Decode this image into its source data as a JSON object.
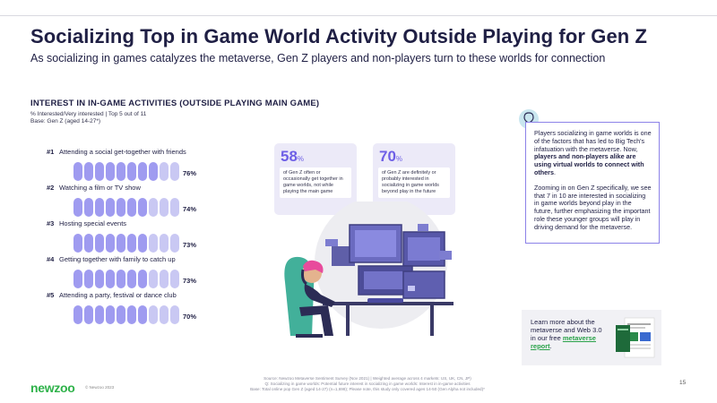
{
  "header": {
    "title": "Socializing Top in Game World Activity Outside Playing for Gen Z",
    "subtitle": "As socializing in games catalyzes the metaverse, Gen Z players and non-players turn to these worlds for connection"
  },
  "section": {
    "title": "INTEREST IN IN-GAME ACTIVITIES (OUTSIDE PLAYING MAIN GAME)",
    "subtitle_1": "% Interested/Very interested | Top 5 out of 11",
    "subtitle_2": "Base: Gen Z (aged 14-27*)"
  },
  "activities": [
    {
      "rank": "#1",
      "label": "Attending a social get-together with friends",
      "value": "76%",
      "fraction": 0.76
    },
    {
      "rank": "#2",
      "label": "Watching a film or TV show",
      "value": "74%",
      "fraction": 0.74
    },
    {
      "rank": "#3",
      "label": "Hosting special events",
      "value": "73%",
      "fraction": 0.73
    },
    {
      "rank": "#4",
      "label": "Getting together with family to catch up",
      "value": "73%",
      "fraction": 0.73
    },
    {
      "rank": "#5",
      "label": "Attending a party, festival or dance club",
      "value": "70%",
      "fraction": 0.7
    }
  ],
  "stats": [
    {
      "value": "58",
      "unit": "%",
      "text": "of Gen Z often or occasionally get together in game worlds, not while playing the main game"
    },
    {
      "value": "70",
      "unit": "%",
      "text": "of Gen Z are definitely or probably interested in socializing in game worlds beyond play in the future"
    }
  ],
  "callout": {
    "p1_a": "Players socializing in game worlds is one of the factors that has led to Big Tech's infatuation with the metaverse. Now, ",
    "p1_bold": "players and non-players alike are using virtual worlds to connect with others",
    "p1_end": ".",
    "p2": "Zooming in on Gen Z specifically, we see that 7 in 10 are interested in socializing in game worlds beyond play in the future, further emphasizing the important role these younger groups will play in driving demand for the metaverse."
  },
  "learn_more": {
    "text": "Learn more about the metaverse and Web 3.0 in our free ",
    "link": "metaverse report",
    "end": "."
  },
  "footer": {
    "logo": "newzoo",
    "copyright": "© Newzoo 2023",
    "source_1": "Source: Newzoo Metaverse Sentiment Survey (Nov 2021) | Weighted average across 4 markets: US, UK, CN, JP)",
    "source_2": "Q: Socializing in game worlds: Potential future interest in socializing in game worlds: Interest in in-game activities",
    "source_3": "Base: Total online pop Gen Z (aged 14-27) (n=1,698); Please note, this study only covered ages 14-50 (Gen Alpha not included)*",
    "page": "15"
  },
  "colors": {
    "accent": "#6e5fe6",
    "pill_on": "#9f9bf0",
    "pill_off": "#c9c8f3",
    "brand_green": "#2fb24a"
  }
}
